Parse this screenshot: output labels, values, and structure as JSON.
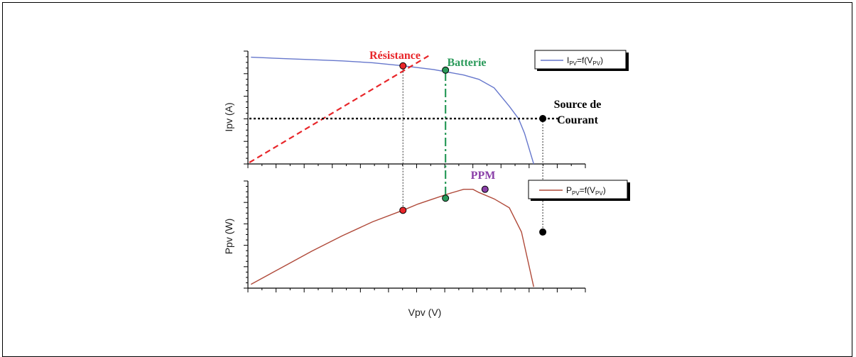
{
  "chart_data": [
    {
      "type": "line",
      "title": "",
      "xlabel": "",
      "ylabel": "Ipv (A)",
      "legend": {
        "main": "I",
        "sub1": "PV",
        "mid": "=f(V",
        "sub2": "PV",
        "end": ")"
      },
      "series": [
        {
          "name": "IPV=f(VPV)",
          "color": "#6677cc",
          "x": [
            0,
            1,
            2,
            3,
            4,
            5,
            6,
            7,
            7.5,
            8,
            8.5,
            8.8,
            9.0,
            9.3
          ],
          "y": [
            10,
            9.9,
            9.8,
            9.7,
            9.55,
            9.3,
            9.0,
            8.55,
            8.2,
            7.5,
            6.0,
            5.0,
            3.8,
            1.3
          ]
        }
      ],
      "xlim": [
        -0.1,
        11
      ],
      "ylim": [
        1.3,
        10.5
      ],
      "grid": false,
      "legend_position": "top-right"
    },
    {
      "type": "line",
      "title": "",
      "xlabel": "Vpv (V)",
      "ylabel": "Ppv (W)",
      "legend": {
        "main": "P",
        "sub1": "PV",
        "mid": "=f(V",
        "sub2": "PV",
        "end": ")"
      },
      "series": [
        {
          "name": "PPV=f(VPV)",
          "color": "#b04a3a",
          "x": [
            0,
            1,
            2,
            3,
            4,
            5,
            5.5,
            6,
            6.5,
            7,
            7.3,
            7.5,
            8.0,
            8.5,
            8.9,
            9.3
          ],
          "y": [
            0.3,
            1.6,
            2.9,
            4.1,
            5.2,
            6.1,
            6.6,
            7.0,
            7.4,
            7.75,
            7.75,
            7.5,
            7.0,
            6.3,
            4.4,
            0.1
          ]
        }
      ],
      "xlim": [
        -0.1,
        11
      ],
      "ylim": [
        0,
        8.4
      ],
      "grid": false,
      "legend_position": "top-right"
    }
  ],
  "annotations": {
    "resistance": {
      "label": "Résistance",
      "color": "#e8262a",
      "v": 5.0,
      "i": 9.3,
      "p": 6.1
    },
    "batterie": {
      "label": "Batterie",
      "color": "#2a9a5a",
      "v": 6.4,
      "i": 8.95,
      "p": 7.05
    },
    "source": {
      "label_line1": "Source de",
      "label_line2": "Courant",
      "color": "#000000",
      "v": 9.6,
      "i": 5.0,
      "p": 4.4
    },
    "ppm": {
      "label": "PPM",
      "color": "#8a3fa8",
      "v": 7.7,
      "p": 7.75
    }
  }
}
